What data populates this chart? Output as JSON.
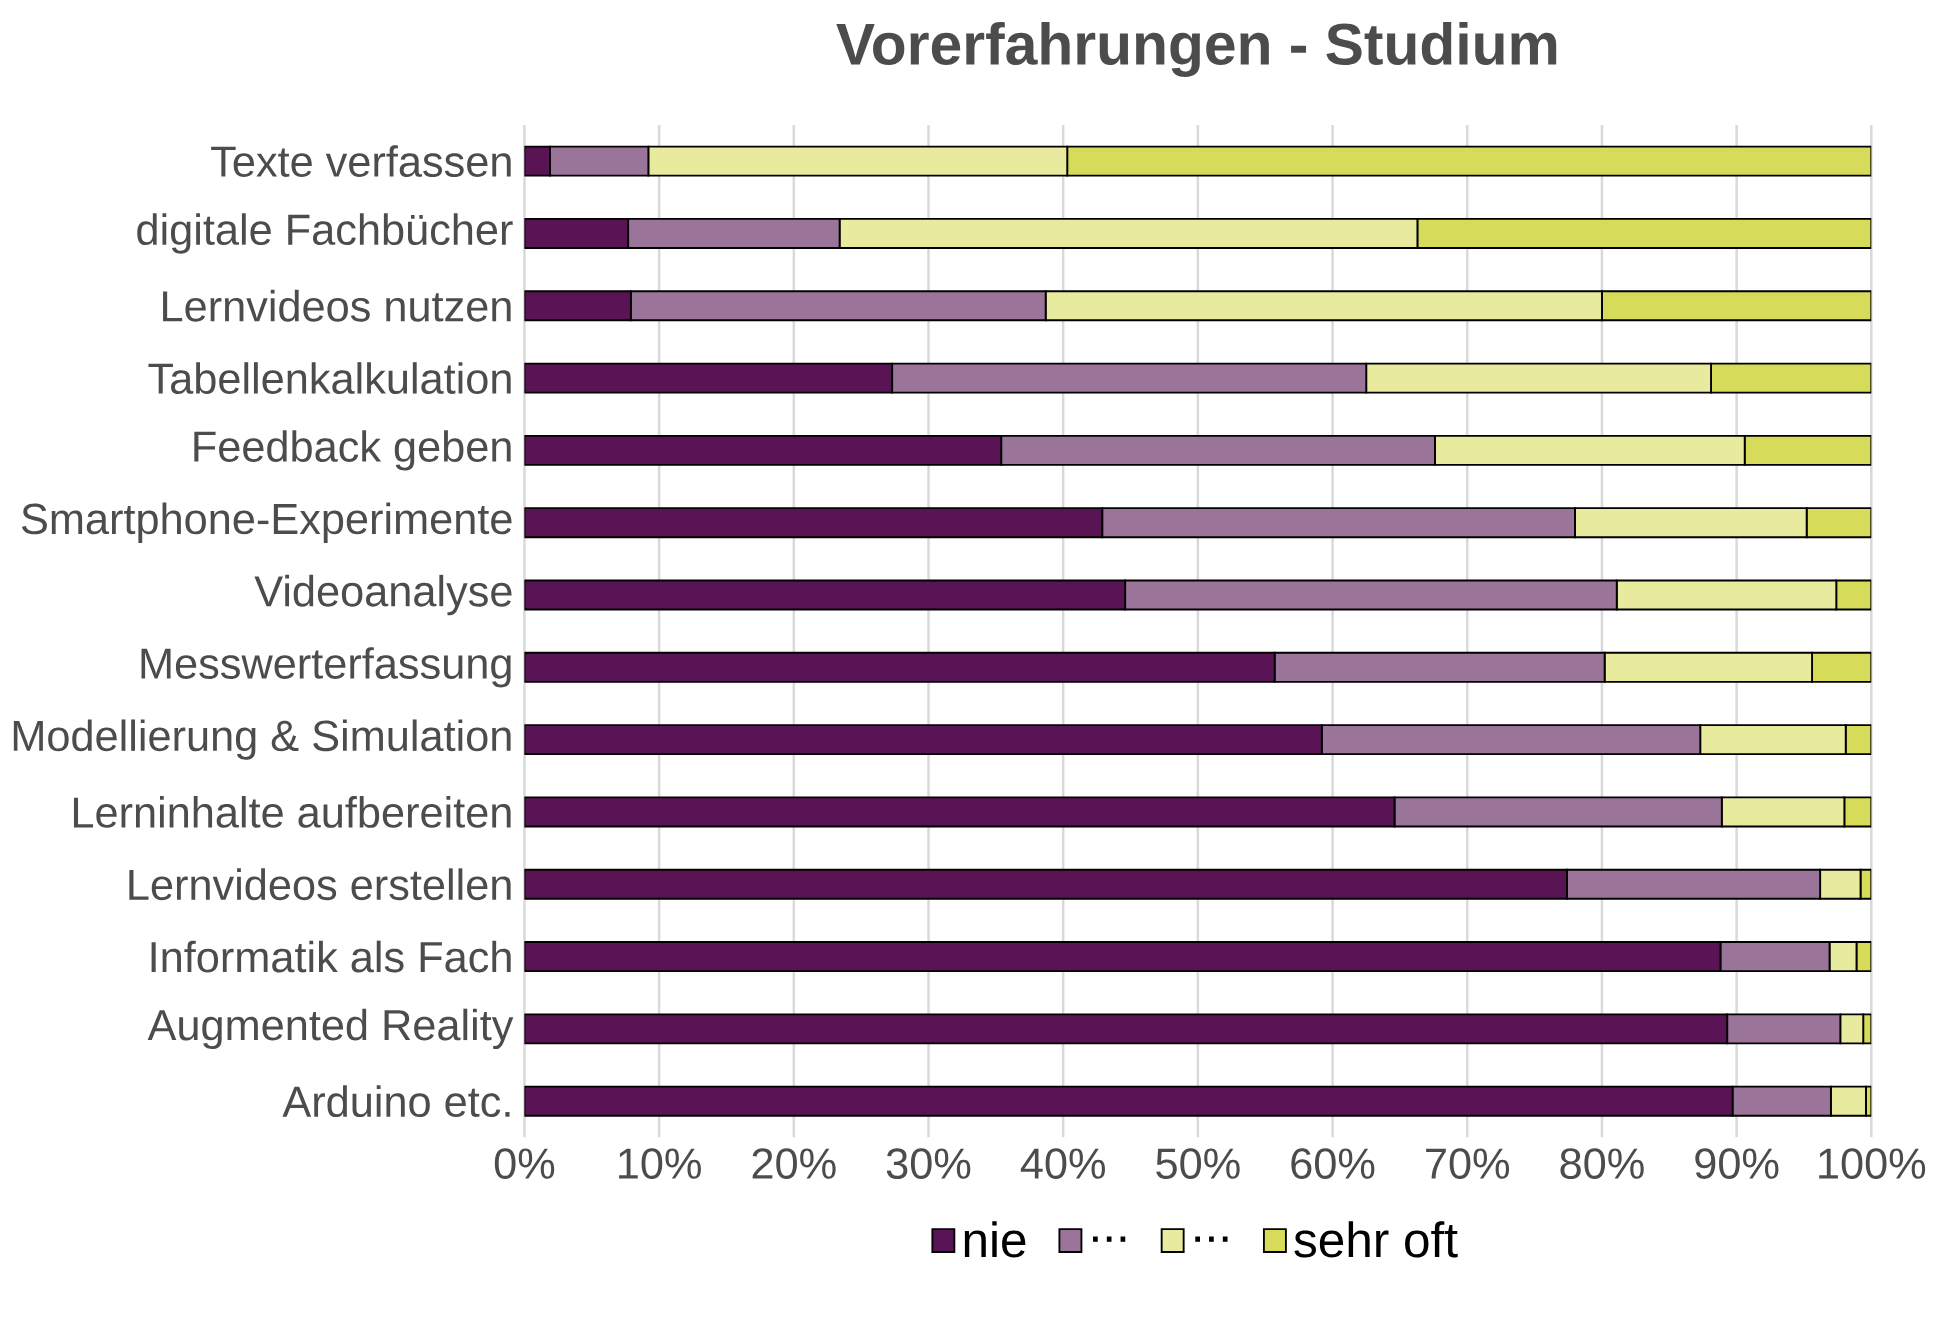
{
  "chart_data": {
    "type": "bar",
    "orientation": "horizontal",
    "stacked": true,
    "title": "Vorerfahrungen - Studium",
    "categories": [
      "Texte verfassen",
      "digitale Fachbücher",
      "Lernvideos nutzen",
      "Tabellenkalkulation",
      "Feedback geben",
      "Smartphone-Experimente",
      "Videoanalyse",
      "Messwerterfassung",
      "Modellierung & Simulation",
      "Lerninhalte aufbereiten",
      "Lernvideos erstellen",
      "Informatik als Fach",
      "Augmented Reality",
      "Arduino etc."
    ],
    "series": [
      {
        "name": "nie",
        "color": "#5a1455",
        "values": [
          1.9,
          7.7,
          7.9,
          27.3,
          35.4,
          42.9,
          44.6,
          55.7,
          59.2,
          64.6,
          77.4,
          88.8,
          89.3,
          89.7
        ]
      },
      {
        "name": "...",
        "color": "#9b7499",
        "values": [
          7.3,
          15.7,
          30.8,
          35.2,
          32.2,
          35.1,
          36.5,
          24.5,
          28.1,
          24.3,
          18.8,
          8.1,
          8.4,
          7.3
        ]
      },
      {
        "name": "...",
        "color": "#e8eb9e",
        "values": [
          31.1,
          42.9,
          41.3,
          25.6,
          23.0,
          17.2,
          16.3,
          15.4,
          10.8,
          9.1,
          3.0,
          2.0,
          1.7,
          2.6
        ]
      },
      {
        "name": "sehr oft",
        "color": "#d6db5a",
        "values": [
          59.7,
          33.7,
          20.0,
          11.9,
          9.4,
          4.8,
          2.6,
          4.4,
          1.9,
          2.0,
          0.8,
          1.1,
          0.6,
          0.4
        ]
      }
    ],
    "xlim": [
      0,
      100
    ],
    "xticks": [
      {
        "value": 0,
        "label": "0%"
      },
      {
        "value": 10,
        "label": "10%"
      },
      {
        "value": 20,
        "label": "20%"
      },
      {
        "value": 30,
        "label": "30%"
      },
      {
        "value": 40,
        "label": "40%"
      },
      {
        "value": 50,
        "label": "50%"
      },
      {
        "value": 60,
        "label": "60%"
      },
      {
        "value": 70,
        "label": "70%"
      },
      {
        "value": 80,
        "label": "80%"
      },
      {
        "value": 90,
        "label": "90%"
      },
      {
        "value": 100,
        "label": "100%"
      }
    ],
    "grid": "x",
    "legend": "bottom"
  }
}
